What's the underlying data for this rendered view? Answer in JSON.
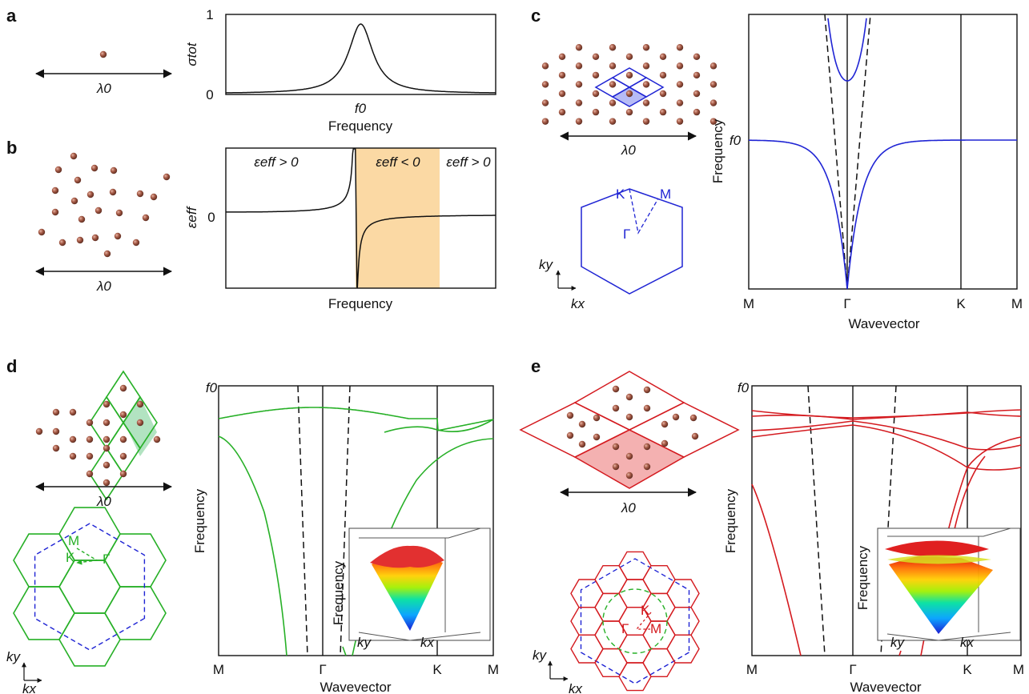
{
  "panels": {
    "a": {
      "letter": "a",
      "lambda_label": "λ0",
      "ylabel": "σtot",
      "xlabel": "Frequency",
      "xtick": "f0",
      "ytick_top": "1",
      "ytick_bottom": "0"
    },
    "b": {
      "letter": "b",
      "lambda_label": "λ0",
      "ylabel": "εeff",
      "xlabel": "Frequency",
      "ytick_zero": "0",
      "region_left": "εeff > 0",
      "region_mid": "εeff < 0",
      "region_right": "εeff > 0"
    },
    "c": {
      "letter": "c",
      "lambda_label": "λ0",
      "ylabel": "Frequency",
      "xlabel": "Wavevector",
      "ytick": "f0",
      "xticks": [
        "M",
        "Γ",
        "K",
        "M"
      ],
      "bz_labels": {
        "K": "K",
        "M": "M",
        "G": "Γ"
      },
      "axes_labels": {
        "ky": "ky",
        "kx": "kx"
      }
    },
    "d": {
      "letter": "d",
      "lambda_label": "λ0",
      "ylabel": "Frequency",
      "xlabel": "Wavevector",
      "ytick": "f0",
      "xticks": [
        "M",
        "Γ",
        "K",
        "M"
      ],
      "bz_labels": {
        "K": "K",
        "M": "M",
        "G": "Γ"
      },
      "axes_labels": {
        "ky": "ky",
        "kx": "kx"
      },
      "inset": {
        "zlabel": "Frequency",
        "xlabel": "kx",
        "ylabel": "ky"
      }
    },
    "e": {
      "letter": "e",
      "lambda_label": "λ0",
      "ylabel": "Frequency",
      "xlabel": "Wavevector",
      "ytick": "f0",
      "xticks": [
        "M",
        "Γ",
        "K",
        "M"
      ],
      "bz_labels": {
        "K": "K",
        "M": "M",
        "G": "Γ"
      },
      "axes_labels": {
        "ky": "ky",
        "kx": "kx"
      },
      "inset": {
        "zlabel": "Frequency",
        "xlabel": "kx",
        "ylabel": "ky"
      }
    }
  },
  "colors": {
    "particle": "#a55a46",
    "blue": "#1f24d4",
    "green": "#27b027",
    "red": "#d41a1f",
    "orange_band": "#fbd9a4"
  },
  "chart_data": [
    {
      "panel": "a",
      "type": "line",
      "title": "",
      "xlabel": "Frequency",
      "ylabel": "σtot",
      "ylim": [
        0,
        1
      ],
      "x_ticks": [
        "f0"
      ],
      "series": [
        {
          "shape": "lorentzian",
          "center_x": 0.5,
          "half_width": 0.055,
          "peak": 1.0
        }
      ]
    },
    {
      "panel": "b",
      "type": "line",
      "title": "",
      "xlabel": "Frequency",
      "ylabel": "εeff",
      "y_ticks": [
        "0"
      ],
      "shaded_region_x": [
        0.48,
        0.78
      ],
      "series": [
        {
          "shape": "lorentz_permittivity",
          "resonance_x": 0.48,
          "plasma_x": 0.78,
          "eps_inf": 0.12
        }
      ]
    },
    {
      "panel": "c",
      "type": "line",
      "title": "",
      "xlabel": "Wavevector",
      "ylabel": "Frequency",
      "x_ticks": [
        "M",
        "Γ",
        "K",
        "M"
      ],
      "y_ticks": [
        "f0"
      ],
      "series": [
        {
          "kind": "light_line",
          "style": "dashed"
        },
        {
          "kind": "lower_polariton",
          "asymptote_f": 0.58
        },
        {
          "kind": "upper_polariton",
          "min_f": 0.78
        }
      ]
    },
    {
      "panel": "d",
      "type": "line",
      "title": "",
      "xlabel": "Wavevector",
      "ylabel": "Frequency",
      "x_ticks": [
        "M",
        "Γ",
        "K",
        "M"
      ],
      "y_ticks": [
        "f0"
      ],
      "series": [
        {
          "kind": "light_line",
          "style": "dashed"
        },
        {
          "kind": "flat_band",
          "f_range": [
            0.88,
            0.92
          ]
        },
        {
          "kind": "dispersive_bands"
        }
      ],
      "inset_type": "3d_surface"
    },
    {
      "panel": "e",
      "type": "line",
      "title": "",
      "xlabel": "Wavevector",
      "ylabel": "Frequency",
      "x_ticks": [
        "M",
        "Γ",
        "K",
        "M"
      ],
      "y_ticks": [
        "f0"
      ],
      "series": [
        {
          "kind": "light_line",
          "style": "dashed"
        },
        {
          "kind": "flat_bands",
          "count": 4,
          "f_range": [
            0.82,
            0.92
          ]
        },
        {
          "kind": "dispersive_bands"
        }
      ],
      "inset_type": "3d_surface"
    }
  ]
}
